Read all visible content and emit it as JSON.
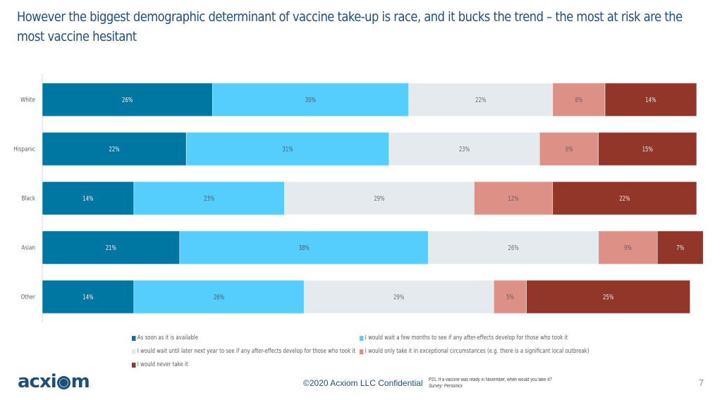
{
  "slide": {
    "title": "However the biggest demographic determinant of vaccine take-up is race, and it bucks the trend – the most at risk are the most vaccine hesitant",
    "footer_confidential": "©2020 Acxiom LLC Confidential",
    "question": "P21. If a vaccine was ready in November, when would you take it?",
    "source": "Survey: Personicx",
    "page_number": "7",
    "logo_text_pre": "acxi",
    "logo_text_post": "m",
    "logo_icon": "globe-icon"
  },
  "chart_data": {
    "type": "bar",
    "orientation": "horizontal",
    "stacked": true,
    "normalized": true,
    "title": "",
    "xlabel": "",
    "ylabel": "",
    "xlim": [
      0,
      100
    ],
    "grid": false,
    "legend_position": "bottom",
    "categories": [
      "White",
      "Hispanic",
      "Black",
      "Asian",
      "Other"
    ],
    "series": [
      {
        "name": "As soon as it is available",
        "color": "#0077a3",
        "label_color": "#e8f4fa",
        "values": [
          26,
          22,
          14,
          21,
          14
        ]
      },
      {
        "name": "I would wait a few months to see if any after-effects develop for those who took it",
        "color": "#55cefe",
        "label_color": "#3f5f75",
        "values": [
          30,
          31,
          23,
          38,
          26
        ]
      },
      {
        "name": "I would wait until later next year to see if any after-effects develop for those who took it",
        "color": "#e5eaef",
        "label_color": "#6b6b6b",
        "values": [
          22,
          23,
          29,
          26,
          29
        ]
      },
      {
        "name": "I would only take it in exceptional circumstances (e.g. there is a significant local outbreak)",
        "color": "#dd9186",
        "label_color": "#6e5a5a",
        "values": [
          8,
          9,
          12,
          9,
          5
        ]
      },
      {
        "name": "I would never take it",
        "color": "#93362a",
        "label_color": "#f2e4e2",
        "values": [
          14,
          15,
          22,
          7,
          25
        ]
      }
    ],
    "data_labels": [
      [
        "26%",
        "30%",
        "22%",
        "8%",
        "14%"
      ],
      [
        "22%",
        "31%",
        "23%",
        "9%",
        "15%"
      ],
      [
        "14%",
        "23%",
        "29%",
        "12%",
        "22%"
      ],
      [
        "21%",
        "38%",
        "26%",
        "9%",
        "7%"
      ],
      [
        "14%",
        "26%",
        "29%",
        "5%",
        "25%"
      ]
    ]
  }
}
